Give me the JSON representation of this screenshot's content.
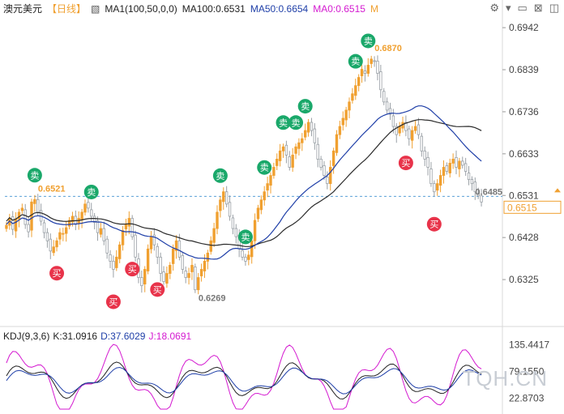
{
  "header": {
    "symbol": "澳元美元",
    "period": "【日线】",
    "ma_legend": "MA1(100,50,0,0)",
    "ma100": "MA100:0.6531",
    "ma50": "MA50:0.6654",
    "ma0": "MA0:0.6515",
    "marker_m": "M"
  },
  "kdj_header": {
    "title": "KDJ(9,3,6)",
    "k": "K:31.0916",
    "d": "D:37.6029",
    "j": "J:18.0691"
  },
  "watermark": "TQH.CN",
  "colors": {
    "up": "#f0a030",
    "down": "#9aa0a6",
    "ma100": "#2b2b2b",
    "ma50": "#1f3fa8",
    "buy": "#e8334a",
    "sell": "#1aa86a",
    "price_tag": "#f0a030",
    "k_line": "#222222",
    "d_line": "#1f3fa8",
    "j_line": "#d41ad0"
  },
  "signals": {
    "buy_label": "买",
    "sell_label": "卖"
  },
  "chart_data": {
    "type": "candlestick",
    "y_ticks": [
      "0.6942",
      "0.6839",
      "0.6736",
      "0.6633",
      "0.6531",
      "0.6428",
      "0.6325"
    ],
    "ylim": [
      0.622,
      0.697
    ],
    "current_price": "0.6515",
    "annotations": [
      {
        "text": "0.6521",
        "bar": 9
      },
      {
        "text": "0.6269",
        "bar": 60
      },
      {
        "text": "0.6870",
        "bar": 116
      },
      {
        "text": "0.6485",
        "bar": 148
      }
    ],
    "kdj_ticks": [
      "135.4417",
      "79.1550",
      "22.8703"
    ],
    "kdj_ylim": [
      0,
      145
    ],
    "closes": [
      0.6458,
      0.6475,
      0.6448,
      0.6473,
      0.649,
      0.65,
      0.646,
      0.6442,
      0.6515,
      0.6521,
      0.649,
      0.6468,
      0.644,
      0.642,
      0.6395,
      0.6405,
      0.642,
      0.644,
      0.6438,
      0.6452,
      0.647,
      0.648,
      0.646,
      0.6475,
      0.649,
      0.651,
      0.65,
      0.648,
      0.6465,
      0.644,
      0.645,
      0.642,
      0.639,
      0.637,
      0.635,
      0.638,
      0.641,
      0.6445,
      0.646,
      0.6475,
      0.643,
      0.638,
      0.633,
      0.631,
      0.635,
      0.64,
      0.643,
      0.641,
      0.638,
      0.634,
      0.632,
      0.634,
      0.636,
      0.64,
      0.642,
      0.638,
      0.635,
      0.633,
      0.634,
      0.636,
      0.63,
      0.633,
      0.635,
      0.637,
      0.639,
      0.642,
      0.645,
      0.649,
      0.652,
      0.654,
      0.651,
      0.648,
      0.645,
      0.643,
      0.64,
      0.638,
      0.637,
      0.6385,
      0.642,
      0.647,
      0.65,
      0.652,
      0.654,
      0.656,
      0.658,
      0.66,
      0.662,
      0.664,
      0.665,
      0.663,
      0.66,
      0.663,
      0.665,
      0.666,
      0.667,
      0.669,
      0.671,
      0.669,
      0.666,
      0.662,
      0.66,
      0.658,
      0.656,
      0.66,
      0.664,
      0.668,
      0.67,
      0.672,
      0.674,
      0.676,
      0.678,
      0.68,
      0.682,
      0.684,
      0.683,
      0.685,
      0.6865,
      0.686,
      0.683,
      0.679,
      0.676,
      0.674,
      0.673,
      0.67,
      0.668,
      0.67,
      0.671,
      0.669,
      0.667,
      0.669,
      0.67,
      0.668,
      0.664,
      0.662,
      0.66,
      0.656,
      0.654,
      0.656,
      0.658,
      0.66,
      0.659,
      0.661,
      0.662,
      0.66,
      0.6615,
      0.6605,
      0.659,
      0.657,
      0.656,
      0.654,
      0.653,
      0.6515
    ]
  }
}
